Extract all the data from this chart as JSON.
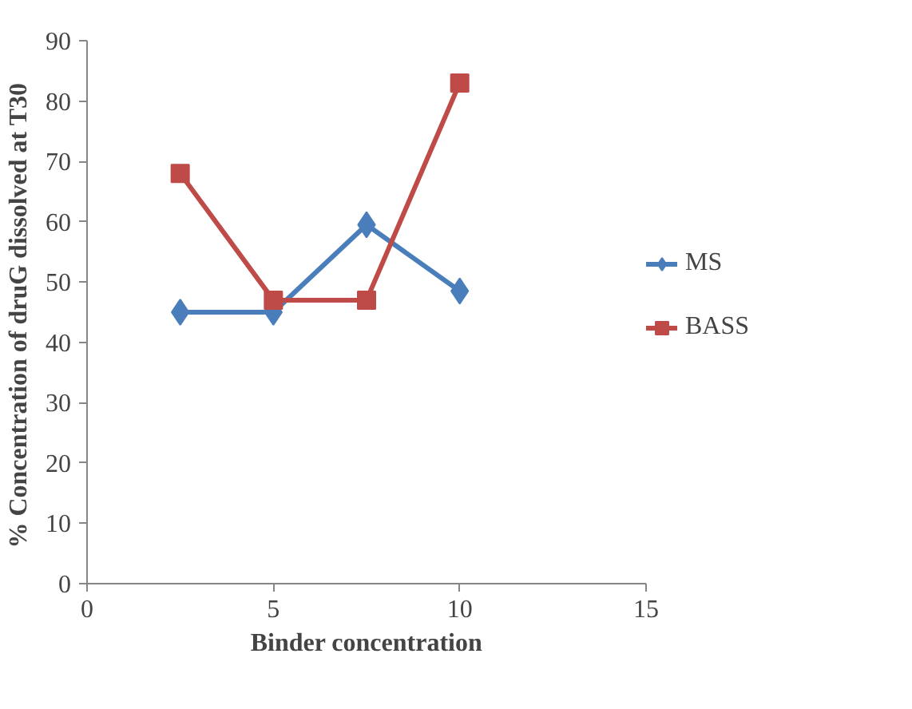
{
  "chart_data": {
    "type": "line",
    "xlabel": "Binder concentration",
    "ylabel": "% Concentration of druG  dissolved at T30",
    "x": [
      2.5,
      5,
      7.5,
      10
    ],
    "series": [
      {
        "name": "MS",
        "color": "#4a7ebb",
        "values": [
          45,
          45,
          59.5,
          48.5
        ],
        "marker": "diamond"
      },
      {
        "name": "BASS",
        "color": "#be4b48",
        "values": [
          68,
          47,
          47,
          83
        ],
        "marker": "square"
      }
    ],
    "xlim": [
      0,
      15
    ],
    "xticks": [
      0,
      5,
      10,
      15
    ],
    "ylim": [
      0,
      90
    ],
    "yticks": [
      0,
      10,
      20,
      30,
      40,
      50,
      60,
      70,
      80,
      90
    ],
    "grid": false,
    "legend": "right",
    "line_style": "solid"
  }
}
